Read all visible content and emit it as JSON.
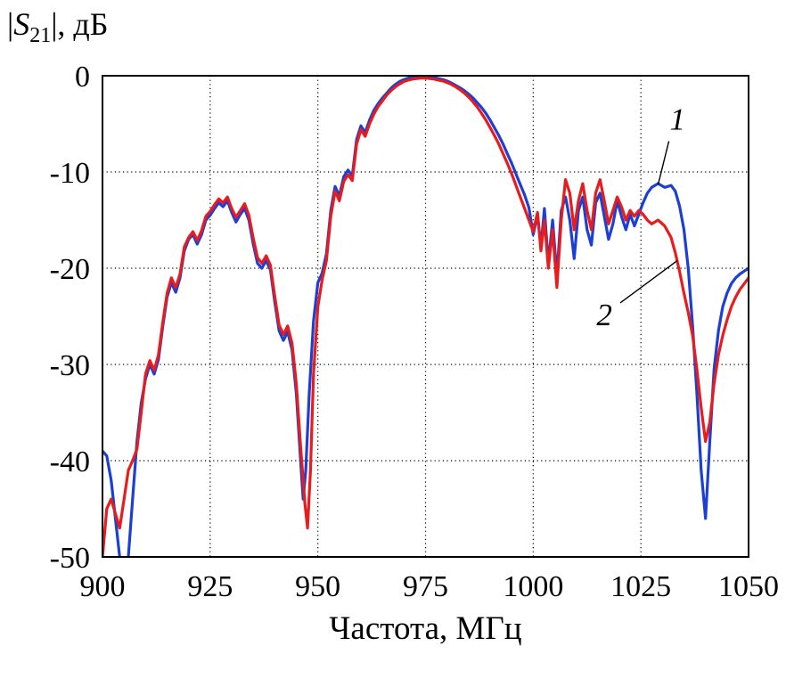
{
  "figure": {
    "ylabel_parts": {
      "pre": "|",
      "sym": "S",
      "sub": "21",
      "post": "|, дБ"
    }
  },
  "chart_data": {
    "type": "line",
    "title": "",
    "xlabel": "Частота, МГц",
    "ylabel": "|S21|, дБ",
    "xlim": [
      900,
      1050
    ],
    "ylim": [
      -50,
      0
    ],
    "grid": "dotted",
    "legend_position": "none",
    "x_ticks": [
      900,
      925,
      950,
      975,
      1000,
      1025,
      1050
    ],
    "x_tick_labels": [
      "900",
      "925",
      "950",
      "975",
      "1000",
      "1025",
      "1050"
    ],
    "y_ticks": [
      0,
      -10,
      -20,
      -30,
      -40,
      -50
    ],
    "y_tick_labels": [
      "0",
      "-10",
      "-20",
      "-30",
      "-40",
      "-50"
    ],
    "colors": {
      "series1": "#1d3fd4",
      "series2": "#e81c1c"
    },
    "series": [
      {
        "name": "1",
        "color_key": "series1",
        "points": [
          [
            900,
            -39
          ],
          [
            901,
            -39.5
          ],
          [
            902,
            -42
          ],
          [
            903,
            -46
          ],
          [
            904,
            -50
          ],
          [
            905,
            -51.5
          ],
          [
            906,
            -50
          ],
          [
            907,
            -44
          ],
          [
            908,
            -38
          ],
          [
            909,
            -34
          ],
          [
            910,
            -31.5
          ],
          [
            911,
            -30
          ],
          [
            912,
            -31
          ],
          [
            913,
            -29.5
          ],
          [
            914,
            -26
          ],
          [
            915,
            -23
          ],
          [
            916,
            -21.5
          ],
          [
            917,
            -22.5
          ],
          [
            918,
            -21
          ],
          [
            919,
            -18.2
          ],
          [
            920,
            -17
          ],
          [
            921,
            -16.5
          ],
          [
            922,
            -17.5
          ],
          [
            923,
            -16.5
          ],
          [
            924,
            -15
          ],
          [
            925,
            -14.5
          ],
          [
            926,
            -13.8
          ],
          [
            927,
            -13.2
          ],
          [
            928,
            -13.6
          ],
          [
            929,
            -13
          ],
          [
            930,
            -14.2
          ],
          [
            931,
            -15.2
          ],
          [
            932,
            -14.4
          ],
          [
            933,
            -13.8
          ],
          [
            934,
            -15
          ],
          [
            935,
            -17.5
          ],
          [
            936,
            -19.5
          ],
          [
            937,
            -20
          ],
          [
            938,
            -19.2
          ],
          [
            939,
            -20.2
          ],
          [
            940,
            -23.5
          ],
          [
            941,
            -26.5
          ],
          [
            942,
            -27.5
          ],
          [
            943,
            -26.6
          ],
          [
            944,
            -28.5
          ],
          [
            945,
            -33
          ],
          [
            946,
            -40
          ],
          [
            946.6,
            -44
          ],
          [
            947.2,
            -41
          ],
          [
            948,
            -33
          ],
          [
            949,
            -25.5
          ],
          [
            950,
            -21.5
          ],
          [
            951,
            -20.5
          ],
          [
            952,
            -18.5
          ],
          [
            953,
            -14
          ],
          [
            954,
            -11.5
          ],
          [
            955,
            -12.5
          ],
          [
            956,
            -10.5
          ],
          [
            957,
            -9.8
          ],
          [
            958,
            -10.4
          ],
          [
            959,
            -6.6
          ],
          [
            960,
            -5.2
          ],
          [
            961,
            -5.9
          ],
          [
            962,
            -4.6
          ],
          [
            963,
            -3.6
          ],
          [
            964,
            -2.9
          ],
          [
            965,
            -2.3
          ],
          [
            966,
            -1.8
          ],
          [
            967,
            -1.3
          ],
          [
            968,
            -0.9
          ],
          [
            969,
            -0.6
          ],
          [
            970,
            -0.4
          ],
          [
            971,
            -0.25
          ],
          [
            972,
            -0.15
          ],
          [
            973,
            -0.1
          ],
          [
            974,
            -0.1
          ],
          [
            975,
            -0.1
          ],
          [
            976,
            -0.15
          ],
          [
            977,
            -0.2
          ],
          [
            978,
            -0.3
          ],
          [
            979,
            -0.4
          ],
          [
            980,
            -0.55
          ],
          [
            981,
            -0.75
          ],
          [
            982,
            -1
          ],
          [
            983,
            -1.25
          ],
          [
            984,
            -1.55
          ],
          [
            985,
            -1.9
          ],
          [
            986,
            -2.3
          ],
          [
            987,
            -2.8
          ],
          [
            988,
            -3.3
          ],
          [
            989,
            -3.9
          ],
          [
            990,
            -4.6
          ],
          [
            991,
            -5.4
          ],
          [
            992,
            -6.2
          ],
          [
            993,
            -7.1
          ],
          [
            994,
            -8.1
          ],
          [
            995,
            -9.1
          ],
          [
            996,
            -10.2
          ],
          [
            997,
            -11.3
          ],
          [
            998,
            -12.4
          ],
          [
            999,
            -13.7
          ],
          [
            1000,
            -16.5
          ],
          [
            1001,
            -14.5
          ],
          [
            1001.8,
            -17.8
          ],
          [
            1002.6,
            -13.8
          ],
          [
            1003.5,
            -19.5
          ],
          [
            1004.5,
            -15
          ],
          [
            1005.5,
            -20.8
          ],
          [
            1006.5,
            -14
          ],
          [
            1007.5,
            -12.6
          ],
          [
            1008.5,
            -15
          ],
          [
            1009.5,
            -19
          ],
          [
            1010.5,
            -14
          ],
          [
            1011.5,
            -12.6
          ],
          [
            1012.5,
            -16
          ],
          [
            1013.5,
            -17.6
          ],
          [
            1014.5,
            -13.2
          ],
          [
            1015.5,
            -12.2
          ],
          [
            1016.5,
            -14.6
          ],
          [
            1017.5,
            -17
          ],
          [
            1018.5,
            -15.4
          ],
          [
            1019.5,
            -13
          ],
          [
            1020.5,
            -14.6
          ],
          [
            1021.5,
            -16
          ],
          [
            1022.5,
            -14.4
          ],
          [
            1023.5,
            -15.6
          ],
          [
            1024.5,
            -14.4
          ],
          [
            1025.5,
            -13.2
          ],
          [
            1026.5,
            -12.2
          ],
          [
            1027.5,
            -11.6
          ],
          [
            1029,
            -11.2
          ],
          [
            1030.5,
            -11.6
          ],
          [
            1032,
            -11.4
          ],
          [
            1033,
            -12
          ],
          [
            1034,
            -13.6
          ],
          [
            1035,
            -16
          ],
          [
            1036,
            -20
          ],
          [
            1037,
            -26
          ],
          [
            1038,
            -33
          ],
          [
            1039,
            -41
          ],
          [
            1040,
            -46
          ],
          [
            1041,
            -38
          ],
          [
            1042,
            -30.5
          ],
          [
            1043,
            -26.5
          ],
          [
            1044,
            -24
          ],
          [
            1045,
            -22.6
          ],
          [
            1046,
            -21.6
          ],
          [
            1047,
            -21
          ],
          [
            1048,
            -20.6
          ],
          [
            1049,
            -20.3
          ],
          [
            1050,
            -20
          ]
        ]
      },
      {
        "name": "2",
        "color_key": "series2",
        "points": [
          [
            900,
            -50
          ],
          [
            901,
            -45
          ],
          [
            902,
            -44
          ],
          [
            903,
            -45.5
          ],
          [
            904,
            -47
          ],
          [
            905,
            -44
          ],
          [
            906,
            -41
          ],
          [
            907,
            -40
          ],
          [
            908,
            -38.8
          ],
          [
            909,
            -35
          ],
          [
            910,
            -31
          ],
          [
            911,
            -29.6
          ],
          [
            912,
            -30.6
          ],
          [
            913,
            -29
          ],
          [
            914,
            -25.6
          ],
          [
            915,
            -22.6
          ],
          [
            916,
            -21
          ],
          [
            917,
            -22
          ],
          [
            918,
            -20.6
          ],
          [
            919,
            -17.8
          ],
          [
            920,
            -16.8
          ],
          [
            921,
            -16.2
          ],
          [
            922,
            -17.1
          ],
          [
            923,
            -16.1
          ],
          [
            924,
            -14.6
          ],
          [
            925,
            -14.1
          ],
          [
            926,
            -13.4
          ],
          [
            927,
            -12.8
          ],
          [
            928,
            -13.2
          ],
          [
            929,
            -12.6
          ],
          [
            930,
            -13.8
          ],
          [
            931,
            -14.7
          ],
          [
            932,
            -14
          ],
          [
            933,
            -13.3
          ],
          [
            934,
            -14.5
          ],
          [
            935,
            -16.9
          ],
          [
            936,
            -18.9
          ],
          [
            937,
            -19.5
          ],
          [
            938,
            -18.7
          ],
          [
            939,
            -19.7
          ],
          [
            940,
            -22.9
          ],
          [
            941,
            -25.9
          ],
          [
            942,
            -26.9
          ],
          [
            943,
            -26
          ],
          [
            944,
            -27.8
          ],
          [
            945,
            -32
          ],
          [
            946,
            -38.5
          ],
          [
            947,
            -44.5
          ],
          [
            947.6,
            -47
          ],
          [
            948.3,
            -41
          ],
          [
            949,
            -31
          ],
          [
            950,
            -24
          ],
          [
            951,
            -21.2
          ],
          [
            952,
            -19.2
          ],
          [
            953,
            -14.6
          ],
          [
            954,
            -12
          ],
          [
            955,
            -13
          ],
          [
            956,
            -11
          ],
          [
            957,
            -10.3
          ],
          [
            958,
            -10.9
          ],
          [
            959,
            -7.1
          ],
          [
            960,
            -5.6
          ],
          [
            961,
            -6.3
          ],
          [
            962,
            -5
          ],
          [
            963,
            -4
          ],
          [
            964,
            -3.2
          ],
          [
            965,
            -2.6
          ],
          [
            966,
            -2
          ],
          [
            967,
            -1.55
          ],
          [
            968,
            -1.15
          ],
          [
            969,
            -0.85
          ],
          [
            970,
            -0.6
          ],
          [
            971,
            -0.45
          ],
          [
            972,
            -0.35
          ],
          [
            973,
            -0.3
          ],
          [
            974,
            -0.25
          ],
          [
            975,
            -0.25
          ],
          [
            976,
            -0.3
          ],
          [
            977,
            -0.35
          ],
          [
            978,
            -0.45
          ],
          [
            979,
            -0.55
          ],
          [
            980,
            -0.7
          ],
          [
            981,
            -0.9
          ],
          [
            982,
            -1.15
          ],
          [
            983,
            -1.45
          ],
          [
            984,
            -1.8
          ],
          [
            985,
            -2.2
          ],
          [
            986,
            -2.7
          ],
          [
            987,
            -3.25
          ],
          [
            988,
            -3.9
          ],
          [
            989,
            -4.6
          ],
          [
            990,
            -5.4
          ],
          [
            991,
            -6.2
          ],
          [
            992,
            -7.1
          ],
          [
            993,
            -8.1
          ],
          [
            994,
            -9.1
          ],
          [
            995,
            -10.2
          ],
          [
            996,
            -11.4
          ],
          [
            997,
            -12.6
          ],
          [
            998,
            -13.8
          ],
          [
            999,
            -15
          ],
          [
            1000,
            -16.2
          ],
          [
            1001,
            -14.2
          ],
          [
            1001.8,
            -18.2
          ],
          [
            1002.6,
            -15
          ],
          [
            1003.5,
            -20
          ],
          [
            1004.5,
            -16
          ],
          [
            1005.5,
            -22
          ],
          [
            1006.5,
            -15
          ],
          [
            1007.5,
            -10.8
          ],
          [
            1008.5,
            -12.2
          ],
          [
            1009.5,
            -16
          ],
          [
            1010.5,
            -13
          ],
          [
            1011.5,
            -11.2
          ],
          [
            1012.5,
            -14
          ],
          [
            1013.5,
            -16
          ],
          [
            1014.5,
            -12.2
          ],
          [
            1015.5,
            -10.8
          ],
          [
            1016.5,
            -13
          ],
          [
            1017.5,
            -15.4
          ],
          [
            1018.5,
            -14
          ],
          [
            1019.5,
            -12.6
          ],
          [
            1020.5,
            -13.6
          ],
          [
            1021.5,
            -15
          ],
          [
            1022.5,
            -14
          ],
          [
            1023.5,
            -14.6
          ],
          [
            1024.5,
            -14
          ],
          [
            1025.5,
            -14.4
          ],
          [
            1026.5,
            -15
          ],
          [
            1027.5,
            -15.4
          ],
          [
            1029,
            -15
          ],
          [
            1030.5,
            -15.6
          ],
          [
            1032,
            -16.8
          ],
          [
            1033,
            -18.4
          ],
          [
            1034,
            -20.4
          ],
          [
            1035,
            -22.6
          ],
          [
            1036,
            -24.6
          ],
          [
            1037,
            -27
          ],
          [
            1038,
            -30.5
          ],
          [
            1039,
            -34.5
          ],
          [
            1040,
            -38
          ],
          [
            1041,
            -36
          ],
          [
            1042,
            -32
          ],
          [
            1043,
            -29
          ],
          [
            1044,
            -27
          ],
          [
            1045,
            -25.4
          ],
          [
            1046,
            -24
          ],
          [
            1047,
            -23
          ],
          [
            1048,
            -22.2
          ],
          [
            1049,
            -21.6
          ],
          [
            1050,
            -21
          ]
        ]
      }
    ],
    "annotations": [
      {
        "label": "1",
        "label_x": 1033.5,
        "label_y": -4.5,
        "line": [
          1031.5,
          -6.8,
          1029,
          -11.3
        ]
      },
      {
        "label": "2",
        "label_x": 1016.5,
        "label_y": -24.8,
        "line": [
          1020.2,
          -23.6,
          1033.5,
          -19.2
        ]
      }
    ]
  }
}
